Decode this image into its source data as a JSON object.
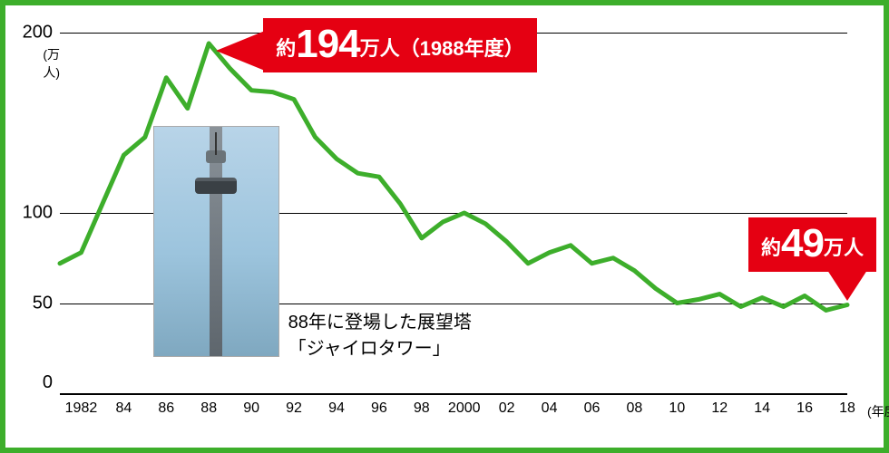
{
  "border_color": "#3dae2b",
  "chart": {
    "type": "line",
    "line_color": "#3dae2b",
    "line_width": 5,
    "grid_color": "#000000",
    "background_color": "#ffffff",
    "ylim": [
      0,
      200
    ],
    "yticks": [
      0,
      50,
      100,
      200
    ],
    "y_gridlines": [
      50,
      100,
      200
    ],
    "y_unit_label": "(万人)",
    "y_unit_under": "200",
    "x_unit_label": "(年度)",
    "x_labels": [
      "1982",
      "84",
      "86",
      "88",
      "90",
      "92",
      "94",
      "96",
      "98",
      "2000",
      "02",
      "04",
      "06",
      "08",
      "10",
      "12",
      "14",
      "16",
      "18"
    ],
    "x_label_years": [
      1982,
      1984,
      1986,
      1988,
      1990,
      1992,
      1994,
      1996,
      1998,
      2000,
      2002,
      2004,
      2006,
      2008,
      2010,
      2012,
      2014,
      2016,
      2018
    ],
    "xlim": [
      1981,
      2018
    ],
    "data": [
      {
        "year": 1981,
        "value": 72
      },
      {
        "year": 1982,
        "value": 78
      },
      {
        "year": 1983,
        "value": 105
      },
      {
        "year": 1984,
        "value": 132
      },
      {
        "year": 1985,
        "value": 142
      },
      {
        "year": 1986,
        "value": 175
      },
      {
        "year": 1987,
        "value": 158
      },
      {
        "year": 1988,
        "value": 194
      },
      {
        "year": 1989,
        "value": 180
      },
      {
        "year": 1990,
        "value": 168
      },
      {
        "year": 1991,
        "value": 167
      },
      {
        "year": 1992,
        "value": 163
      },
      {
        "year": 1993,
        "value": 142
      },
      {
        "year": 1994,
        "value": 130
      },
      {
        "year": 1995,
        "value": 122
      },
      {
        "year": 1996,
        "value": 120
      },
      {
        "year": 1997,
        "value": 105
      },
      {
        "year": 1998,
        "value": 86
      },
      {
        "year": 1999,
        "value": 95
      },
      {
        "year": 2000,
        "value": 100
      },
      {
        "year": 2001,
        "value": 94
      },
      {
        "year": 2002,
        "value": 84
      },
      {
        "year": 2003,
        "value": 72
      },
      {
        "year": 2004,
        "value": 78
      },
      {
        "year": 2005,
        "value": 82
      },
      {
        "year": 2006,
        "value": 72
      },
      {
        "year": 2007,
        "value": 75
      },
      {
        "year": 2008,
        "value": 68
      },
      {
        "year": 2009,
        "value": 58
      },
      {
        "year": 2010,
        "value": 50
      },
      {
        "year": 2011,
        "value": 52
      },
      {
        "year": 2012,
        "value": 55
      },
      {
        "year": 2013,
        "value": 48
      },
      {
        "year": 2014,
        "value": 53
      },
      {
        "year": 2015,
        "value": 48
      },
      {
        "year": 2016,
        "value": 54
      },
      {
        "year": 2017,
        "value": 46
      },
      {
        "year": 2018,
        "value": 49
      }
    ]
  },
  "callouts": {
    "peak": {
      "pre": "約",
      "big": "194",
      "post": "万人（1988年度）",
      "bg": "#e50012",
      "text_color": "#ffffff",
      "tri_color": "#e50012",
      "year": 1988,
      "value": 194
    },
    "latest": {
      "pre": "約",
      "big": "49",
      "post": "万人",
      "bg": "#e50012",
      "text_color": "#ffffff",
      "tri_color": "#e50012",
      "year": 2018,
      "value": 49
    }
  },
  "photo": {
    "caption_line1": "88年に登場した展望塔",
    "caption_line2": "「ジャイロタワー」",
    "left_year": 1985.4,
    "right_year": 1991.3,
    "top_value": 148,
    "bottom_value": 20
  },
  "fonts": {
    "axis_tick": 20,
    "axis_sub": 14,
    "caption": 20,
    "callout_pre": 22,
    "callout_big": 44
  }
}
